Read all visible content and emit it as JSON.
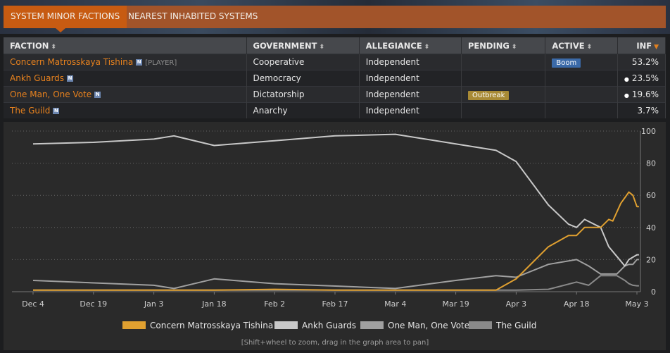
{
  "tabs": [
    "SYSTEM MINOR FACTIONS",
    "NEAREST INHABITED SYSTEMS"
  ],
  "table": {
    "headers": [
      "FACTION",
      "GOVERNMENT",
      "ALLEGIANCE",
      "PENDING",
      "ACTIVE",
      "INF"
    ],
    "rows": [
      {
        "faction": "Concern Matrosskaya Tishina",
        "badge": "N",
        "tag": "[PLAYER]",
        "government": "Cooperative",
        "allegiance": "Independent",
        "pending": "",
        "active": "Boom",
        "inf": "53.2%",
        "dot": ""
      },
      {
        "faction": "Ankh Guards",
        "badge": "N",
        "tag": "",
        "government": "Democracy",
        "allegiance": "Independent",
        "pending": "",
        "active": "",
        "inf": "23.5%",
        "dot": "●"
      },
      {
        "faction": "One Man, One Vote",
        "badge": "N",
        "tag": "",
        "government": "Dictatorship",
        "allegiance": "Independent",
        "pending": "Outbreak",
        "active": "",
        "inf": "19.6%",
        "dot": "●"
      },
      {
        "faction": "The Guild",
        "badge": "N",
        "tag": "",
        "government": "Anarchy",
        "allegiance": "Independent",
        "pending": "",
        "active": "",
        "inf": "3.7%",
        "dot": ""
      }
    ]
  },
  "chart_data": {
    "type": "line",
    "x_ticks": [
      "Dec 4",
      "Dec 19",
      "Jan 3",
      "Jan 18",
      "Feb 2",
      "Feb 17",
      "Mar 4",
      "Mar 19",
      "Apr 3",
      "Apr 18",
      "May 3"
    ],
    "y_ticks": [
      "0",
      "20",
      "40",
      "60",
      "80",
      "100"
    ],
    "ylim": [
      0,
      100
    ],
    "grid": true,
    "legend_position": "bottom",
    "series": [
      {
        "name": "Concern Matrosskaya Tishina",
        "color": "#e0a030",
        "points": [
          [
            "Dec 4",
            1
          ],
          [
            "Jan 3",
            1
          ],
          [
            "Jan 18",
            1
          ],
          [
            "Feb 2",
            1.5
          ],
          [
            "Feb 17",
            1
          ],
          [
            "Mar 4",
            1
          ],
          [
            "Mar 19",
            1
          ],
          [
            "Mar 29",
            1
          ],
          [
            "Apr 3",
            8
          ],
          [
            "Apr 11",
            28
          ],
          [
            "Apr 16",
            35
          ],
          [
            "Apr 18",
            35
          ],
          [
            "Apr 20",
            40
          ],
          [
            "Apr 24",
            40
          ],
          [
            "Apr 26",
            45
          ],
          [
            "Apr 27",
            44
          ],
          [
            "Apr 29",
            55
          ],
          [
            "May 1",
            62
          ],
          [
            "May 2",
            60
          ],
          [
            "May 3",
            53
          ],
          [
            "May 3.5",
            53
          ]
        ]
      },
      {
        "name": "Ankh Guards",
        "color": "#c8c8c8",
        "points": [
          [
            "Dec 4",
            92
          ],
          [
            "Dec 19",
            93
          ],
          [
            "Jan 3",
            95
          ],
          [
            "Jan 8",
            97
          ],
          [
            "Jan 18",
            91
          ],
          [
            "Feb 2",
            94
          ],
          [
            "Feb 17",
            97
          ],
          [
            "Mar 4",
            98
          ],
          [
            "Mar 19",
            92
          ],
          [
            "Mar 29",
            88
          ],
          [
            "Apr 3",
            81
          ],
          [
            "Apr 11",
            54
          ],
          [
            "Apr 16",
            42
          ],
          [
            "Apr 18",
            40
          ],
          [
            "Apr 20",
            45
          ],
          [
            "Apr 24",
            40
          ],
          [
            "Apr 26",
            28
          ],
          [
            "Apr 28",
            22
          ],
          [
            "Apr 30",
            16
          ],
          [
            "May 1",
            20
          ],
          [
            "May 3",
            23
          ],
          [
            "May 3.5",
            23
          ]
        ]
      },
      {
        "name": "One Man, One Vote",
        "color": "#a0a0a0",
        "points": [
          [
            "Dec 4",
            7
          ],
          [
            "Jan 3",
            4
          ],
          [
            "Jan 8",
            2
          ],
          [
            "Jan 18",
            8
          ],
          [
            "Feb 2",
            5
          ],
          [
            "Mar 4",
            2
          ],
          [
            "Mar 19",
            7
          ],
          [
            "Mar 29",
            10
          ],
          [
            "Apr 3",
            9
          ],
          [
            "Apr 11",
            17
          ],
          [
            "Apr 18",
            20
          ],
          [
            "Apr 21",
            16
          ],
          [
            "Apr 24",
            11
          ],
          [
            "Apr 28",
            11
          ],
          [
            "Apr 30",
            16
          ],
          [
            "May 1",
            17
          ],
          [
            "May 2",
            17
          ],
          [
            "May 3",
            20
          ],
          [
            "May 3.5",
            20
          ]
        ]
      },
      {
        "name": "The Guild",
        "color": "#8a8a8a",
        "points": [
          [
            "Dec 4",
            1
          ],
          [
            "Jan 3",
            1
          ],
          [
            "Feb 2",
            1
          ],
          [
            "Mar 4",
            1
          ],
          [
            "Apr 3",
            1
          ],
          [
            "Apr 11",
            1.5
          ],
          [
            "Apr 18",
            6
          ],
          [
            "Apr 21",
            4
          ],
          [
            "Apr 24",
            10
          ],
          [
            "Apr 28",
            10
          ],
          [
            "Apr 30",
            7
          ],
          [
            "May 1",
            5
          ],
          [
            "May 2",
            4
          ],
          [
            "May 3",
            3.7
          ],
          [
            "May 3.5",
            3.7
          ]
        ]
      }
    ]
  },
  "legend": [
    "Concern Matrosskaya Tishina",
    "Ankh Guards",
    "One Man, One Vote",
    "The Guild"
  ],
  "note": "[Shift+wheel to zoom, drag in the graph area to pan]"
}
